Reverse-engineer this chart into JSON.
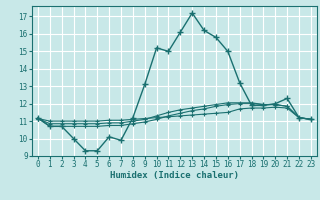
{
  "bg_color": "#c8e8e8",
  "grid_color": "#ffffff",
  "line_color": "#1a7070",
  "xlabel": "Humidex (Indice chaleur)",
  "xlim": [
    -0.5,
    23.5
  ],
  "ylim": [
    9,
    17.6
  ],
  "yticks": [
    9,
    10,
    11,
    12,
    13,
    14,
    15,
    16,
    17
  ],
  "xticks": [
    0,
    1,
    2,
    3,
    4,
    5,
    6,
    7,
    8,
    9,
    10,
    11,
    12,
    13,
    14,
    15,
    16,
    17,
    18,
    19,
    20,
    21,
    22,
    23
  ],
  "main_x": [
    0,
    1,
    2,
    3,
    4,
    5,
    6,
    7,
    8,
    9,
    10,
    11,
    12,
    13,
    14,
    15,
    16,
    17,
    18,
    19,
    20,
    21,
    22,
    23
  ],
  "main_y": [
    11.2,
    10.7,
    10.7,
    10.0,
    9.3,
    9.3,
    10.1,
    9.9,
    11.2,
    13.1,
    15.2,
    15.0,
    16.1,
    17.2,
    16.2,
    15.8,
    15.0,
    13.2,
    11.9,
    11.9,
    12.0,
    12.3,
    11.2,
    11.1
  ],
  "line2_x": [
    0,
    1,
    2,
    3,
    4,
    5,
    6,
    7,
    8,
    9,
    10,
    11,
    12,
    13,
    14,
    15,
    16,
    17,
    18,
    19,
    20,
    21,
    22,
    23
  ],
  "line2_y": [
    11.15,
    11.0,
    11.0,
    11.0,
    11.0,
    11.0,
    11.05,
    11.05,
    11.1,
    11.15,
    11.2,
    11.25,
    11.3,
    11.35,
    11.4,
    11.45,
    11.5,
    11.7,
    11.75,
    11.75,
    11.8,
    11.75,
    11.2,
    11.1
  ],
  "line3_x": [
    0,
    1,
    2,
    3,
    4,
    5,
    6,
    7,
    8,
    9,
    10,
    11,
    12,
    13,
    14,
    15,
    16,
    17,
    18,
    19,
    20,
    21,
    22,
    23
  ],
  "line3_y": [
    11.15,
    10.85,
    10.85,
    10.85,
    10.85,
    10.85,
    10.9,
    10.9,
    11.0,
    11.1,
    11.3,
    11.5,
    11.65,
    11.75,
    11.85,
    11.95,
    12.05,
    12.05,
    12.05,
    11.95,
    11.95,
    11.85,
    11.2,
    11.1
  ],
  "line4_x": [
    0,
    1,
    2,
    3,
    4,
    5,
    6,
    7,
    8,
    9,
    10,
    11,
    12,
    13,
    14,
    15,
    16,
    17,
    18,
    19,
    20,
    21,
    22,
    23
  ],
  "line4_y": [
    11.15,
    10.7,
    10.7,
    10.7,
    10.7,
    10.7,
    10.75,
    10.75,
    10.85,
    10.95,
    11.1,
    11.3,
    11.45,
    11.6,
    11.7,
    11.85,
    11.95,
    12.0,
    12.0,
    11.95,
    11.95,
    11.85,
    11.2,
    11.1
  ]
}
